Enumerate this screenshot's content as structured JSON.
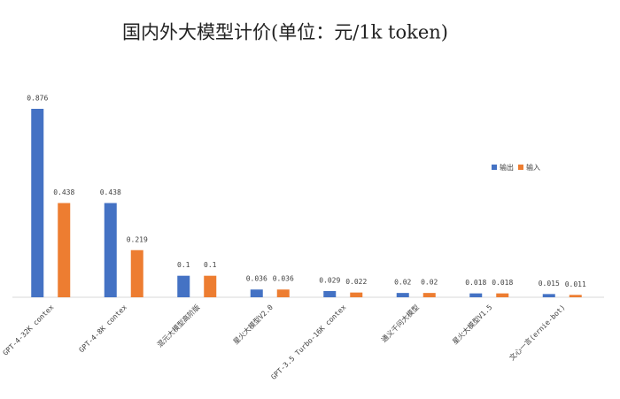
{
  "chart_data": {
    "type": "bar",
    "title": "国内外大模型计价(单位：元/1k token)",
    "categories": [
      "GPT-4-32K contex",
      "GPT-4-8K contex",
      "混元大模型高阶版",
      "星火大模型V2.0",
      "GPT-3.5 Turbo-16K contex",
      "通义千问大模型",
      "星火大模型V1.5",
      "文心一言(ernie-bot)"
    ],
    "series": [
      {
        "name": "输出",
        "color": "#4472c4",
        "values": [
          0.876,
          0.438,
          0.1,
          0.036,
          0.029,
          0.02,
          0.018,
          0.015
        ]
      },
      {
        "name": "输入",
        "color": "#ed7d31",
        "values": [
          0.438,
          0.219,
          0.1,
          0.036,
          0.022,
          0.02,
          0.018,
          0.011
        ]
      }
    ],
    "legend": "right"
  }
}
